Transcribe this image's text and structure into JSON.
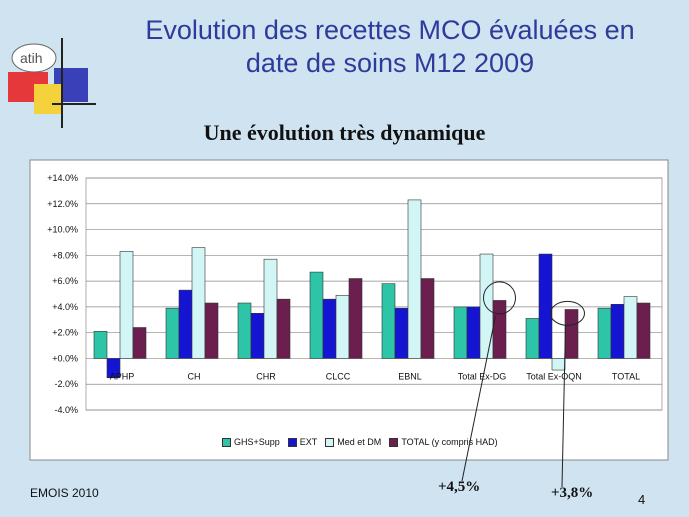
{
  "slide": {
    "title_line1": "Evolution des recettes MCO évaluées en",
    "title_line2": "date de soins M12 2009",
    "subtitle": "Une évolution très dynamique",
    "footer": "EMOIS 2010",
    "page_number": "4",
    "logo_text": "atih"
  },
  "annotations": {
    "callout_1": "+4,5%",
    "callout_2": "+3,8%"
  },
  "colors": {
    "background": "#cfe3f0",
    "plot_bg": "#ffffff",
    "series": [
      "#2ec4a8",
      "#1414d2",
      "#d2f5f5",
      "#6a1f4e"
    ]
  },
  "chart_data": {
    "type": "bar",
    "categories": [
      "APHP",
      "CH",
      "CHR",
      "CLCC",
      "EBNL",
      "Total Ex-DG",
      "Total Ex-OQN",
      "TOTAL"
    ],
    "series": [
      {
        "name": "GHS+Supp",
        "values": [
          2.1,
          3.9,
          4.3,
          6.7,
          5.8,
          4.0,
          3.1,
          3.9
        ]
      },
      {
        "name": "EXT",
        "values": [
          -1.5,
          5.3,
          3.5,
          4.6,
          3.9,
          4.0,
          8.1,
          4.2
        ]
      },
      {
        "name": "Med et DM",
        "values": [
          8.3,
          8.6,
          7.7,
          4.9,
          12.3,
          8.1,
          -0.9,
          4.8
        ]
      },
      {
        "name": "TOTAL (y compris HAD)",
        "values": [
          2.4,
          4.3,
          4.6,
          6.2,
          6.2,
          4.5,
          3.8,
          4.3
        ]
      }
    ],
    "y_ticks": [
      "+14.0%",
      "+12.0%",
      "+10.0%",
      "+8.0%",
      "+6.0%",
      "+4.0%",
      "+2.0%",
      "+0.0%",
      "-2.0%",
      "-4.0%"
    ],
    "ylim": [
      -4,
      14
    ],
    "title": "",
    "xlabel": "",
    "ylabel": "",
    "legend_position": "bottom"
  }
}
